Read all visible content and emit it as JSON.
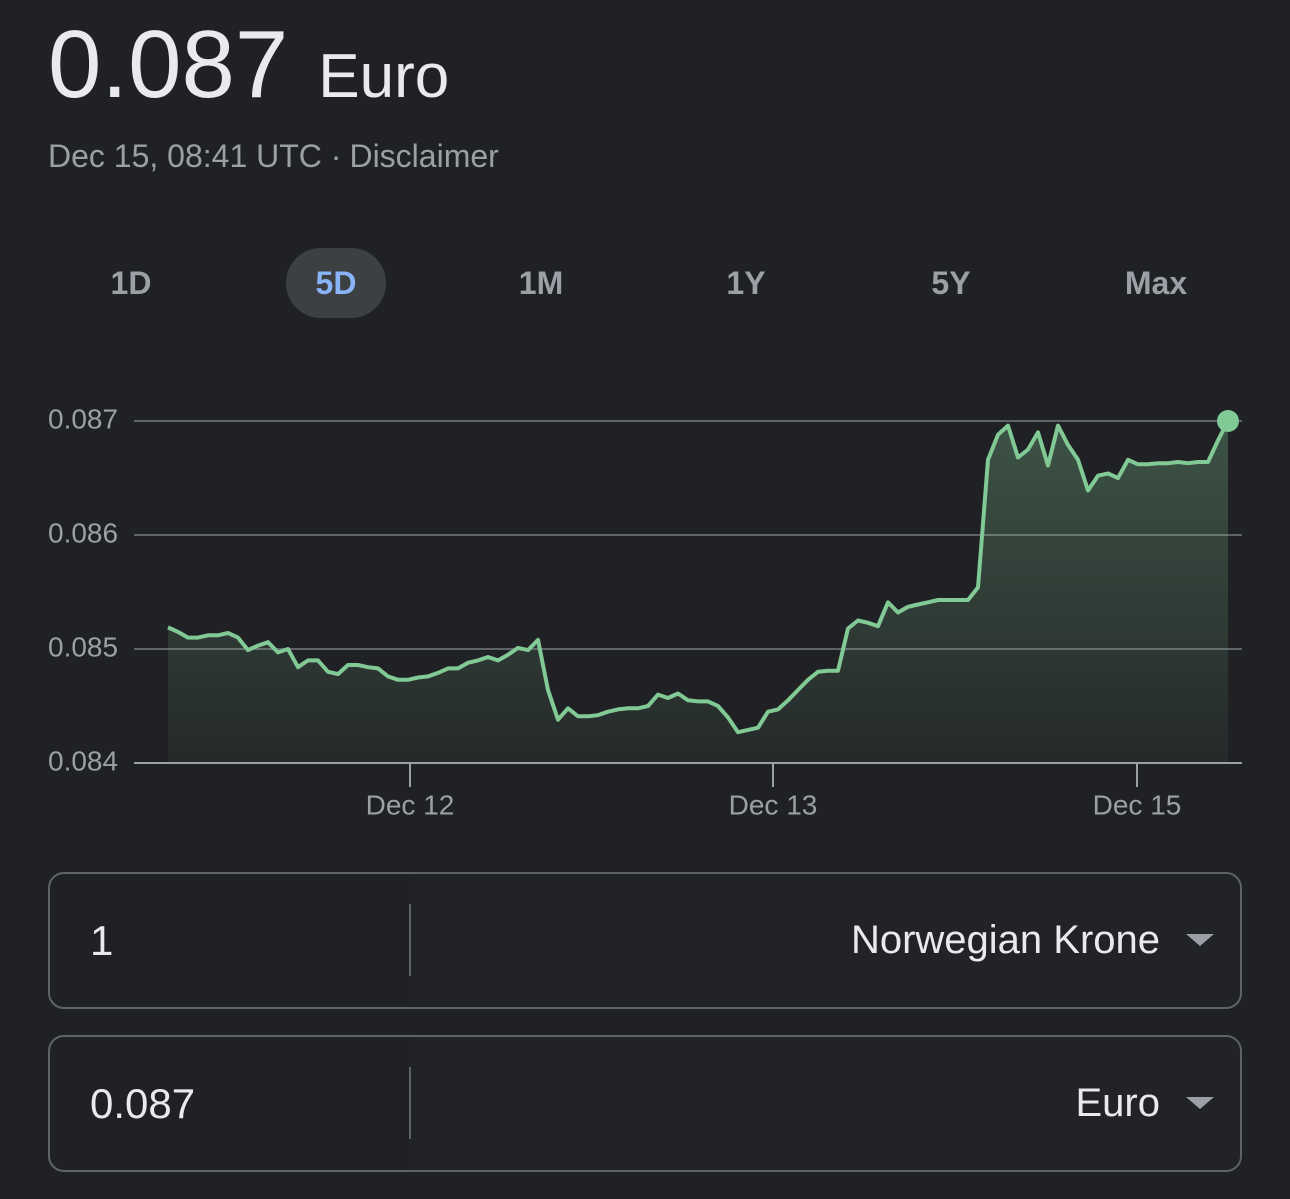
{
  "header": {
    "value": "0.087",
    "currency": "Euro",
    "timestamp": "Dec 15, 08:41 UTC ·",
    "disclaimer": "Disclaimer"
  },
  "tabs": [
    "1D",
    "5D",
    "1M",
    "1Y",
    "5Y",
    "Max"
  ],
  "active_tab": 1,
  "chart_data": {
    "type": "line",
    "color": "#81c995",
    "grid": true,
    "ylim": [
      0.084,
      0.087
    ],
    "yticks": [
      0.087,
      0.086,
      0.085,
      0.084
    ],
    "xlim": [
      0,
      106
    ],
    "xticks": [
      {
        "value": 24.2,
        "label": "Dec 12"
      },
      {
        "value": 60.5,
        "label": "Dec 13"
      },
      {
        "value": 96.9,
        "label": "Dec 15"
      }
    ],
    "values": [
      0.08519,
      0.08515,
      0.0851,
      0.0851,
      0.08512,
      0.08512,
      0.08514,
      0.0851,
      0.08499,
      0.08503,
      0.08506,
      0.08497,
      0.085,
      0.08484,
      0.0849,
      0.0849,
      0.0848,
      0.08478,
      0.08486,
      0.08486,
      0.08484,
      0.08483,
      0.08476,
      0.08473,
      0.08473,
      0.08475,
      0.08476,
      0.08479,
      0.08483,
      0.08483,
      0.08488,
      0.0849,
      0.08493,
      0.0849,
      0.08495,
      0.08501,
      0.08499,
      0.08508,
      0.08464,
      0.08438,
      0.08448,
      0.08441,
      0.08441,
      0.08442,
      0.08445,
      0.08447,
      0.08448,
      0.08448,
      0.0845,
      0.0846,
      0.08457,
      0.08461,
      0.08455,
      0.08454,
      0.08454,
      0.0845,
      0.0844,
      0.08427,
      0.08429,
      0.08431,
      0.08445,
      0.08447,
      0.08455,
      0.08464,
      0.08473,
      0.0848,
      0.08481,
      0.08481,
      0.08518,
      0.08525,
      0.08523,
      0.0852,
      0.08541,
      0.08532,
      0.08537,
      0.08539,
      0.08541,
      0.08543,
      0.08543,
      0.08543,
      0.08543,
      0.08554,
      0.08666,
      0.08688,
      0.08696,
      0.08668,
      0.08675,
      0.0869,
      0.08661,
      0.08696,
      0.08679,
      0.08666,
      0.08639,
      0.08652,
      0.08654,
      0.0865,
      0.08666,
      0.08662,
      0.08662,
      0.08663,
      0.08663,
      0.08664,
      0.08663,
      0.08664,
      0.08664,
      0.08683,
      0.087
    ]
  },
  "converter": [
    {
      "amount": "1",
      "currency": "Norwegian Krone"
    },
    {
      "amount": "0.087",
      "currency": "Euro"
    }
  ]
}
